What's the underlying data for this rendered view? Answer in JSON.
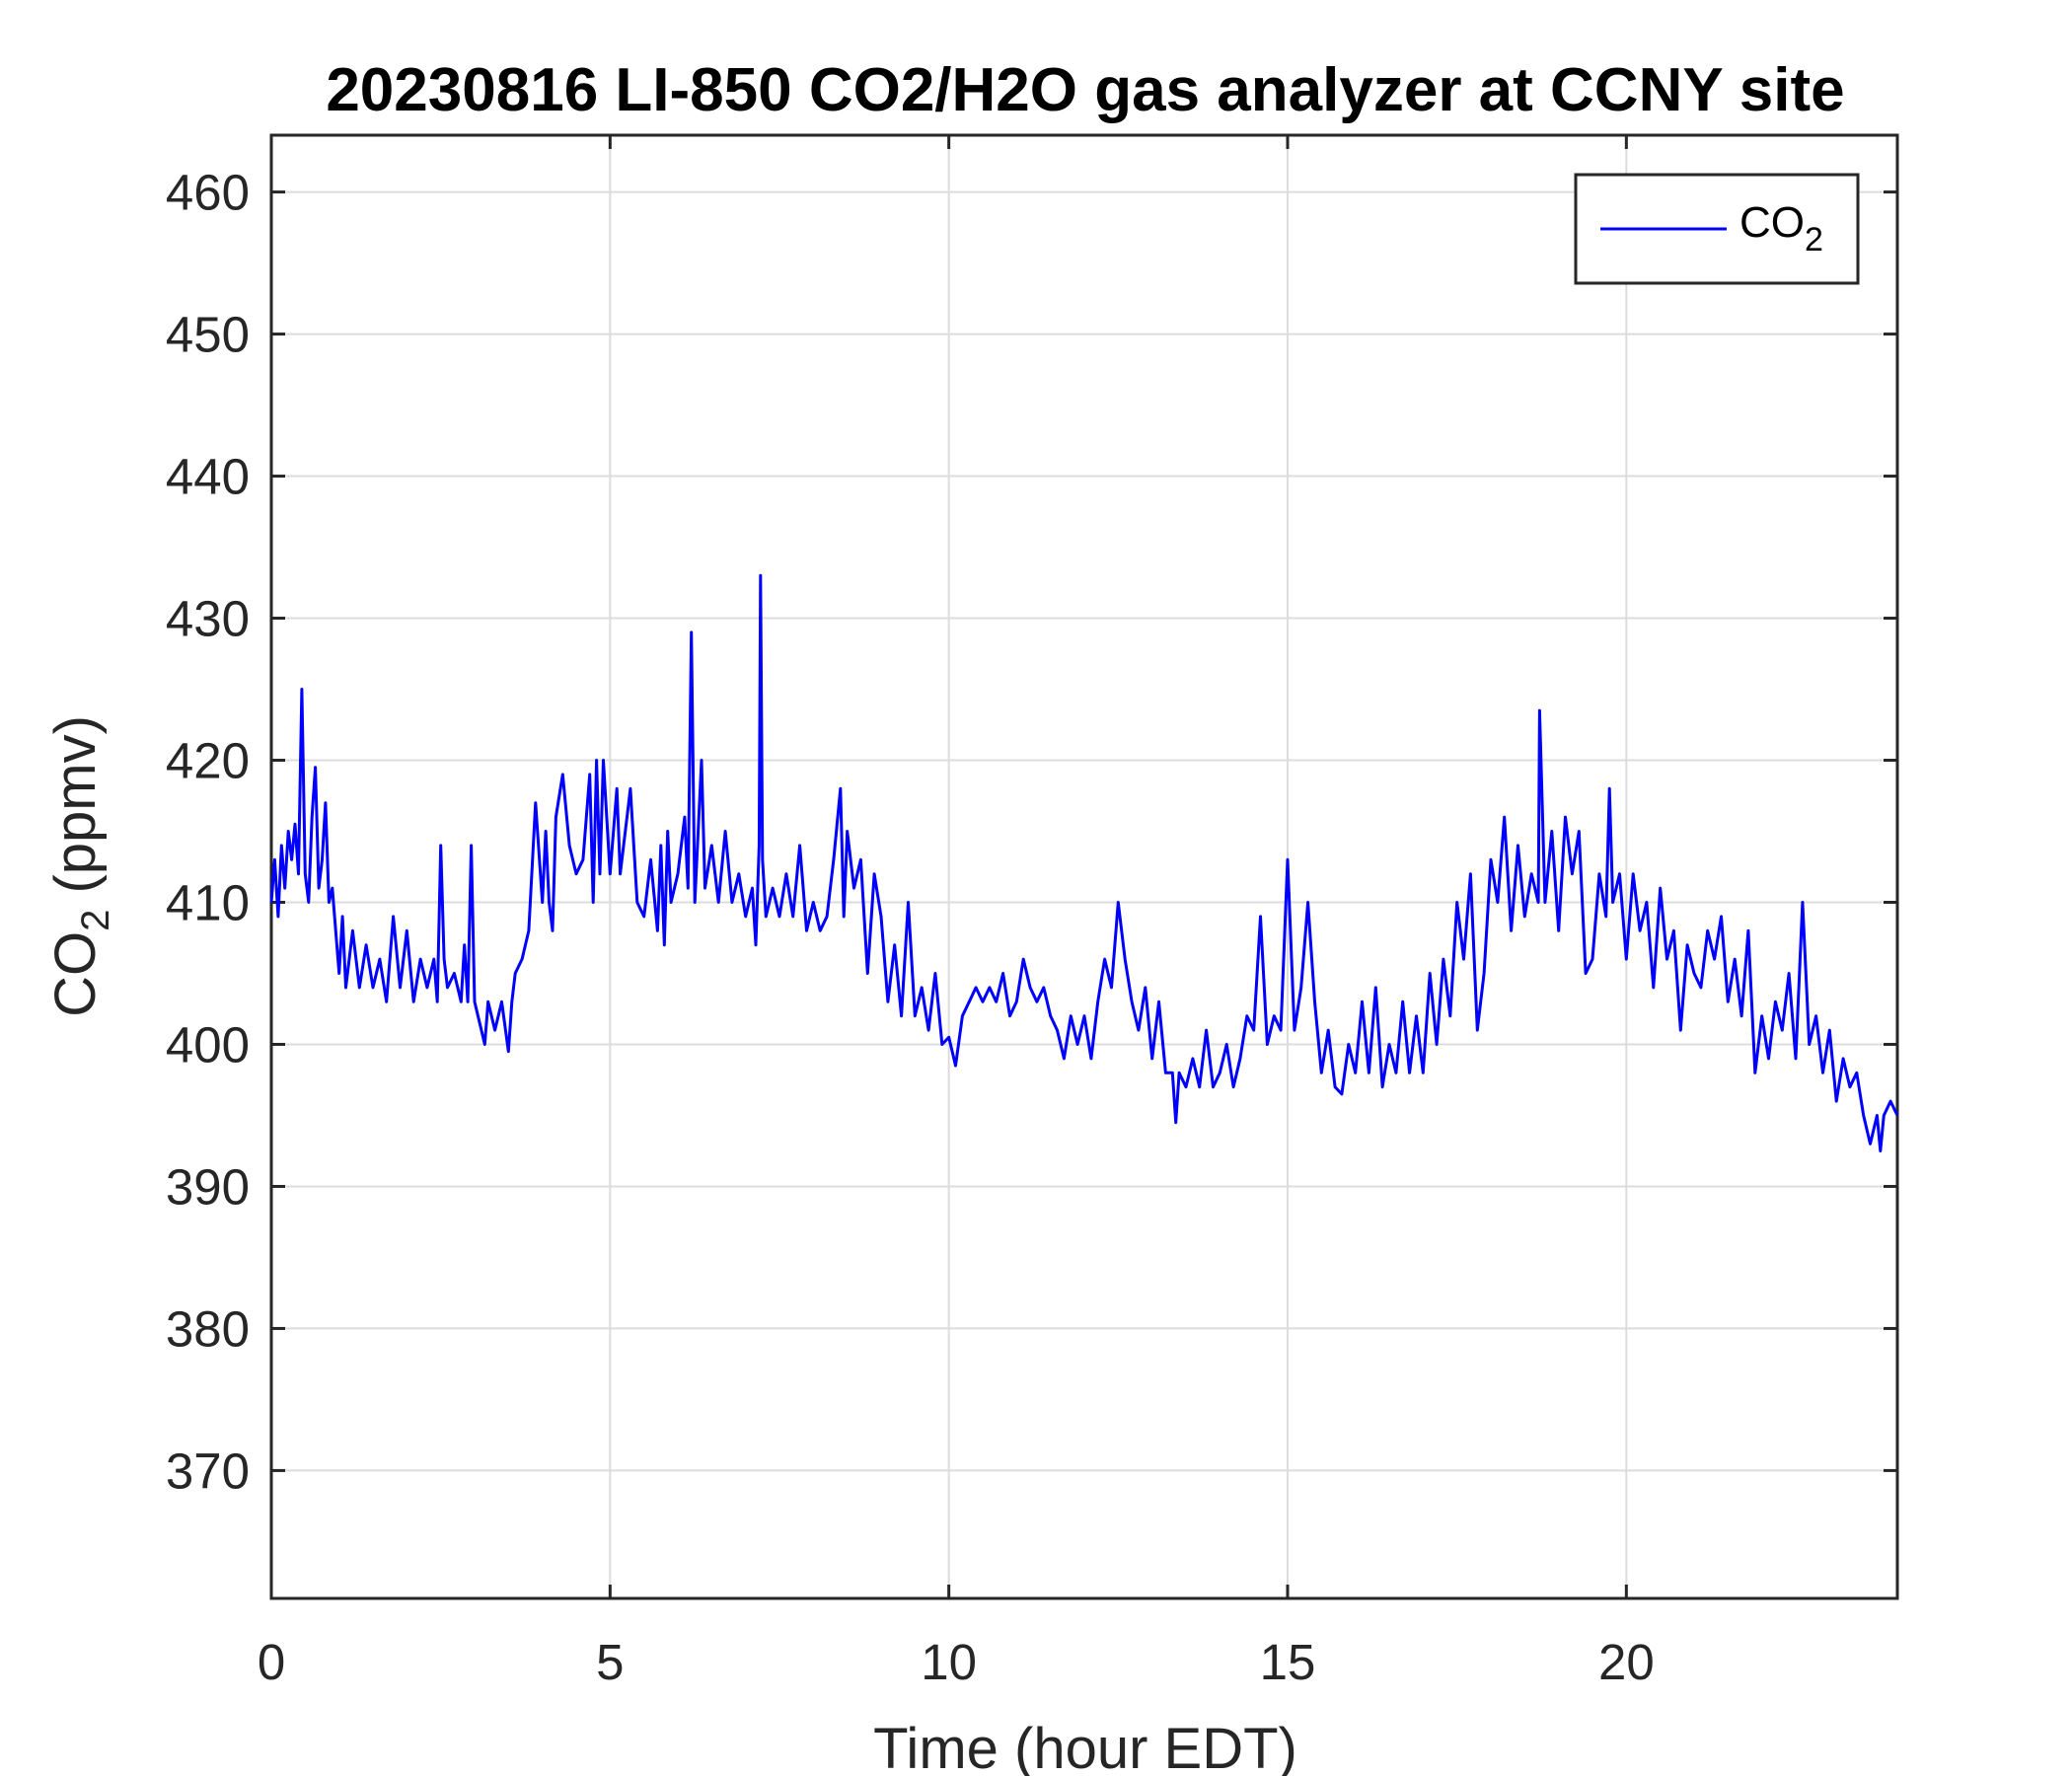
{
  "chart_data": {
    "type": "line",
    "title": "20230816 LI-850 CO2/H2O gas analyzer at CCNY site",
    "xlabel": "Time (hour EDT)",
    "ylabel": "CO",
    "ylabel_sub": "2",
    "ylabel_rest": " (ppmv)",
    "xlim": [
      0,
      24
    ],
    "ylim": [
      361,
      464
    ],
    "xticks": [
      0,
      5,
      10,
      15,
      20
    ],
    "xtick_labels": [
      "0",
      "5",
      "10",
      "15",
      "20"
    ],
    "yticks": [
      370,
      380,
      390,
      400,
      410,
      420,
      430,
      440,
      450,
      460
    ],
    "ytick_labels": [
      "370",
      "380",
      "390",
      "400",
      "410",
      "420",
      "430",
      "440",
      "450",
      "460"
    ],
    "grid": true,
    "legend": {
      "position": "top-right",
      "entries": [
        {
          "label": "CO",
          "sub": "2"
        }
      ]
    },
    "series": [
      {
        "name": "CO2",
        "color": "#0000ff",
        "points": [
          [
            0.0,
            410.0
          ],
          [
            0.05,
            413.0
          ],
          [
            0.1,
            409.0
          ],
          [
            0.15,
            414.0
          ],
          [
            0.2,
            411.0
          ],
          [
            0.25,
            415.0
          ],
          [
            0.3,
            413.0
          ],
          [
            0.35,
            415.5
          ],
          [
            0.4,
            412.0
          ],
          [
            0.45,
            425.0
          ],
          [
            0.5,
            412.0
          ],
          [
            0.55,
            410.0
          ],
          [
            0.6,
            416.0
          ],
          [
            0.65,
            419.5
          ],
          [
            0.7,
            411.0
          ],
          [
            0.75,
            413.0
          ],
          [
            0.8,
            417.0
          ],
          [
            0.85,
            410.0
          ],
          [
            0.9,
            411.0
          ],
          [
            1.0,
            405.0
          ],
          [
            1.05,
            409.0
          ],
          [
            1.1,
            404.0
          ],
          [
            1.2,
            408.0
          ],
          [
            1.3,
            404.0
          ],
          [
            1.4,
            407.0
          ],
          [
            1.5,
            404.0
          ],
          [
            1.6,
            406.0
          ],
          [
            1.7,
            403.0
          ],
          [
            1.8,
            409.0
          ],
          [
            1.9,
            404.0
          ],
          [
            2.0,
            408.0
          ],
          [
            2.1,
            403.0
          ],
          [
            2.2,
            406.0
          ],
          [
            2.3,
            404.0
          ],
          [
            2.4,
            406.0
          ],
          [
            2.45,
            403.0
          ],
          [
            2.5,
            414.0
          ],
          [
            2.55,
            406.0
          ],
          [
            2.6,
            404.0
          ],
          [
            2.7,
            405.0
          ],
          [
            2.8,
            403.0
          ],
          [
            2.85,
            407.0
          ],
          [
            2.9,
            403.0
          ],
          [
            2.95,
            414.0
          ],
          [
            3.0,
            403.0
          ],
          [
            3.1,
            401.0
          ],
          [
            3.15,
            400.0
          ],
          [
            3.2,
            403.0
          ],
          [
            3.3,
            401.0
          ],
          [
            3.4,
            403.0
          ],
          [
            3.5,
            399.5
          ],
          [
            3.55,
            403.0
          ],
          [
            3.6,
            405.0
          ],
          [
            3.7,
            406.0
          ],
          [
            3.8,
            408.0
          ],
          [
            3.9,
            417.0
          ],
          [
            4.0,
            410.0
          ],
          [
            4.05,
            415.0
          ],
          [
            4.1,
            410.0
          ],
          [
            4.15,
            408.0
          ],
          [
            4.2,
            416.0
          ],
          [
            4.3,
            419.0
          ],
          [
            4.4,
            414.0
          ],
          [
            4.5,
            412.0
          ],
          [
            4.6,
            413.0
          ],
          [
            4.7,
            419.0
          ],
          [
            4.75,
            410.0
          ],
          [
            4.8,
            420.0
          ],
          [
            4.85,
            412.0
          ],
          [
            4.9,
            420.0
          ],
          [
            5.0,
            412.0
          ],
          [
            5.1,
            418.0
          ],
          [
            5.15,
            412.0
          ],
          [
            5.3,
            418.0
          ],
          [
            5.4,
            410.0
          ],
          [
            5.5,
            409.0
          ],
          [
            5.6,
            413.0
          ],
          [
            5.7,
            408.0
          ],
          [
            5.75,
            414.0
          ],
          [
            5.8,
            407.0
          ],
          [
            5.85,
            415.0
          ],
          [
            5.9,
            410.0
          ],
          [
            6.0,
            412.0
          ],
          [
            6.1,
            416.0
          ],
          [
            6.15,
            411.0
          ],
          [
            6.2,
            429.0
          ],
          [
            6.25,
            410.0
          ],
          [
            6.3,
            415.0
          ],
          [
            6.35,
            420.0
          ],
          [
            6.4,
            411.0
          ],
          [
            6.5,
            414.0
          ],
          [
            6.6,
            410.0
          ],
          [
            6.7,
            415.0
          ],
          [
            6.8,
            410.0
          ],
          [
            6.9,
            412.0
          ],
          [
            7.0,
            409.0
          ],
          [
            7.1,
            411.0
          ],
          [
            7.15,
            407.0
          ],
          [
            7.2,
            414.0
          ],
          [
            7.22,
            433.0
          ],
          [
            7.25,
            413.0
          ],
          [
            7.3,
            409.0
          ],
          [
            7.4,
            411.0
          ],
          [
            7.5,
            409.0
          ],
          [
            7.6,
            412.0
          ],
          [
            7.7,
            409.0
          ],
          [
            7.8,
            414.0
          ],
          [
            7.9,
            408.0
          ],
          [
            8.0,
            410.0
          ],
          [
            8.1,
            408.0
          ],
          [
            8.2,
            409.0
          ],
          [
            8.3,
            413.0
          ],
          [
            8.4,
            418.0
          ],
          [
            8.45,
            409.0
          ],
          [
            8.5,
            415.0
          ],
          [
            8.6,
            411.0
          ],
          [
            8.7,
            413.0
          ],
          [
            8.8,
            405.0
          ],
          [
            8.9,
            412.0
          ],
          [
            9.0,
            409.0
          ],
          [
            9.1,
            403.0
          ],
          [
            9.2,
            407.0
          ],
          [
            9.3,
            402.0
          ],
          [
            9.4,
            410.0
          ],
          [
            9.5,
            402.0
          ],
          [
            9.6,
            404.0
          ],
          [
            9.7,
            401.0
          ],
          [
            9.8,
            405.0
          ],
          [
            9.9,
            400.0
          ],
          [
            10.0,
            400.5
          ],
          [
            10.1,
            398.5
          ],
          [
            10.2,
            402.0
          ],
          [
            10.3,
            403.0
          ],
          [
            10.4,
            404.0
          ],
          [
            10.5,
            403.0
          ],
          [
            10.6,
            404.0
          ],
          [
            10.7,
            403.0
          ],
          [
            10.8,
            405.0
          ],
          [
            10.9,
            402.0
          ],
          [
            11.0,
            403.0
          ],
          [
            11.1,
            406.0
          ],
          [
            11.2,
            404.0
          ],
          [
            11.3,
            403.0
          ],
          [
            11.4,
            404.0
          ],
          [
            11.5,
            402.0
          ],
          [
            11.6,
            401.0
          ],
          [
            11.7,
            399.0
          ],
          [
            11.8,
            402.0
          ],
          [
            11.9,
            400.0
          ],
          [
            12.0,
            402.0
          ],
          [
            12.1,
            399.0
          ],
          [
            12.2,
            403.0
          ],
          [
            12.3,
            406.0
          ],
          [
            12.4,
            404.0
          ],
          [
            12.5,
            410.0
          ],
          [
            12.6,
            406.0
          ],
          [
            12.7,
            403.0
          ],
          [
            12.8,
            401.0
          ],
          [
            12.9,
            404.0
          ],
          [
            13.0,
            399.0
          ],
          [
            13.1,
            403.0
          ],
          [
            13.2,
            398.0
          ],
          [
            13.3,
            398.0
          ],
          [
            13.35,
            394.5
          ],
          [
            13.4,
            398.0
          ],
          [
            13.5,
            397.0
          ],
          [
            13.6,
            399.0
          ],
          [
            13.7,
            397.0
          ],
          [
            13.8,
            401.0
          ],
          [
            13.9,
            397.0
          ],
          [
            14.0,
            398.0
          ],
          [
            14.1,
            400.0
          ],
          [
            14.2,
            397.0
          ],
          [
            14.3,
            399.0
          ],
          [
            14.4,
            402.0
          ],
          [
            14.5,
            401.0
          ],
          [
            14.6,
            409.0
          ],
          [
            14.7,
            400.0
          ],
          [
            14.8,
            402.0
          ],
          [
            14.9,
            401.0
          ],
          [
            15.0,
            413.0
          ],
          [
            15.1,
            401.0
          ],
          [
            15.2,
            404.0
          ],
          [
            15.3,
            410.0
          ],
          [
            15.4,
            403.0
          ],
          [
            15.5,
            398.0
          ],
          [
            15.6,
            401.0
          ],
          [
            15.7,
            397.0
          ],
          [
            15.8,
            396.5
          ],
          [
            15.9,
            400.0
          ],
          [
            16.0,
            398.0
          ],
          [
            16.1,
            403.0
          ],
          [
            16.2,
            398.0
          ],
          [
            16.3,
            404.0
          ],
          [
            16.4,
            397.0
          ],
          [
            16.5,
            400.0
          ],
          [
            16.6,
            398.0
          ],
          [
            16.7,
            403.0
          ],
          [
            16.8,
            398.0
          ],
          [
            16.9,
            402.0
          ],
          [
            17.0,
            398.0
          ],
          [
            17.1,
            405.0
          ],
          [
            17.2,
            400.0
          ],
          [
            17.3,
            406.0
          ],
          [
            17.4,
            402.0
          ],
          [
            17.5,
            410.0
          ],
          [
            17.6,
            406.0
          ],
          [
            17.7,
            412.0
          ],
          [
            17.8,
            401.0
          ],
          [
            17.9,
            405.0
          ],
          [
            18.0,
            413.0
          ],
          [
            18.1,
            410.0
          ],
          [
            18.2,
            416.0
          ],
          [
            18.3,
            408.0
          ],
          [
            18.4,
            414.0
          ],
          [
            18.5,
            409.0
          ],
          [
            18.6,
            412.0
          ],
          [
            18.7,
            410.0
          ],
          [
            18.72,
            423.5
          ],
          [
            18.8,
            410.0
          ],
          [
            18.9,
            415.0
          ],
          [
            19.0,
            408.0
          ],
          [
            19.1,
            416.0
          ],
          [
            19.2,
            412.0
          ],
          [
            19.3,
            415.0
          ],
          [
            19.4,
            405.0
          ],
          [
            19.5,
            406.0
          ],
          [
            19.6,
            412.0
          ],
          [
            19.7,
            409.0
          ],
          [
            19.75,
            418.0
          ],
          [
            19.8,
            410.0
          ],
          [
            19.9,
            412.0
          ],
          [
            20.0,
            406.0
          ],
          [
            20.1,
            412.0
          ],
          [
            20.2,
            408.0
          ],
          [
            20.3,
            410.0
          ],
          [
            20.4,
            404.0
          ],
          [
            20.5,
            411.0
          ],
          [
            20.6,
            406.0
          ],
          [
            20.7,
            408.0
          ],
          [
            20.8,
            401.0
          ],
          [
            20.9,
            407.0
          ],
          [
            21.0,
            405.0
          ],
          [
            21.1,
            404.0
          ],
          [
            21.2,
            408.0
          ],
          [
            21.3,
            406.0
          ],
          [
            21.4,
            409.0
          ],
          [
            21.5,
            403.0
          ],
          [
            21.6,
            406.0
          ],
          [
            21.7,
            402.0
          ],
          [
            21.8,
            408.0
          ],
          [
            21.9,
            398.0
          ],
          [
            22.0,
            402.0
          ],
          [
            22.1,
            399.0
          ],
          [
            22.2,
            403.0
          ],
          [
            22.3,
            401.0
          ],
          [
            22.4,
            405.0
          ],
          [
            22.5,
            399.0
          ],
          [
            22.6,
            410.0
          ],
          [
            22.7,
            400.0
          ],
          [
            22.8,
            402.0
          ],
          [
            22.9,
            398.0
          ],
          [
            23.0,
            401.0
          ],
          [
            23.1,
            396.0
          ],
          [
            23.2,
            399.0
          ],
          [
            23.3,
            397.0
          ],
          [
            23.4,
            398.0
          ],
          [
            23.5,
            395.0
          ],
          [
            23.6,
            393.0
          ],
          [
            23.7,
            395.0
          ],
          [
            23.75,
            392.5
          ],
          [
            23.8,
            395.0
          ],
          [
            23.9,
            396.0
          ],
          [
            24.0,
            395.0
          ]
        ]
      }
    ]
  }
}
